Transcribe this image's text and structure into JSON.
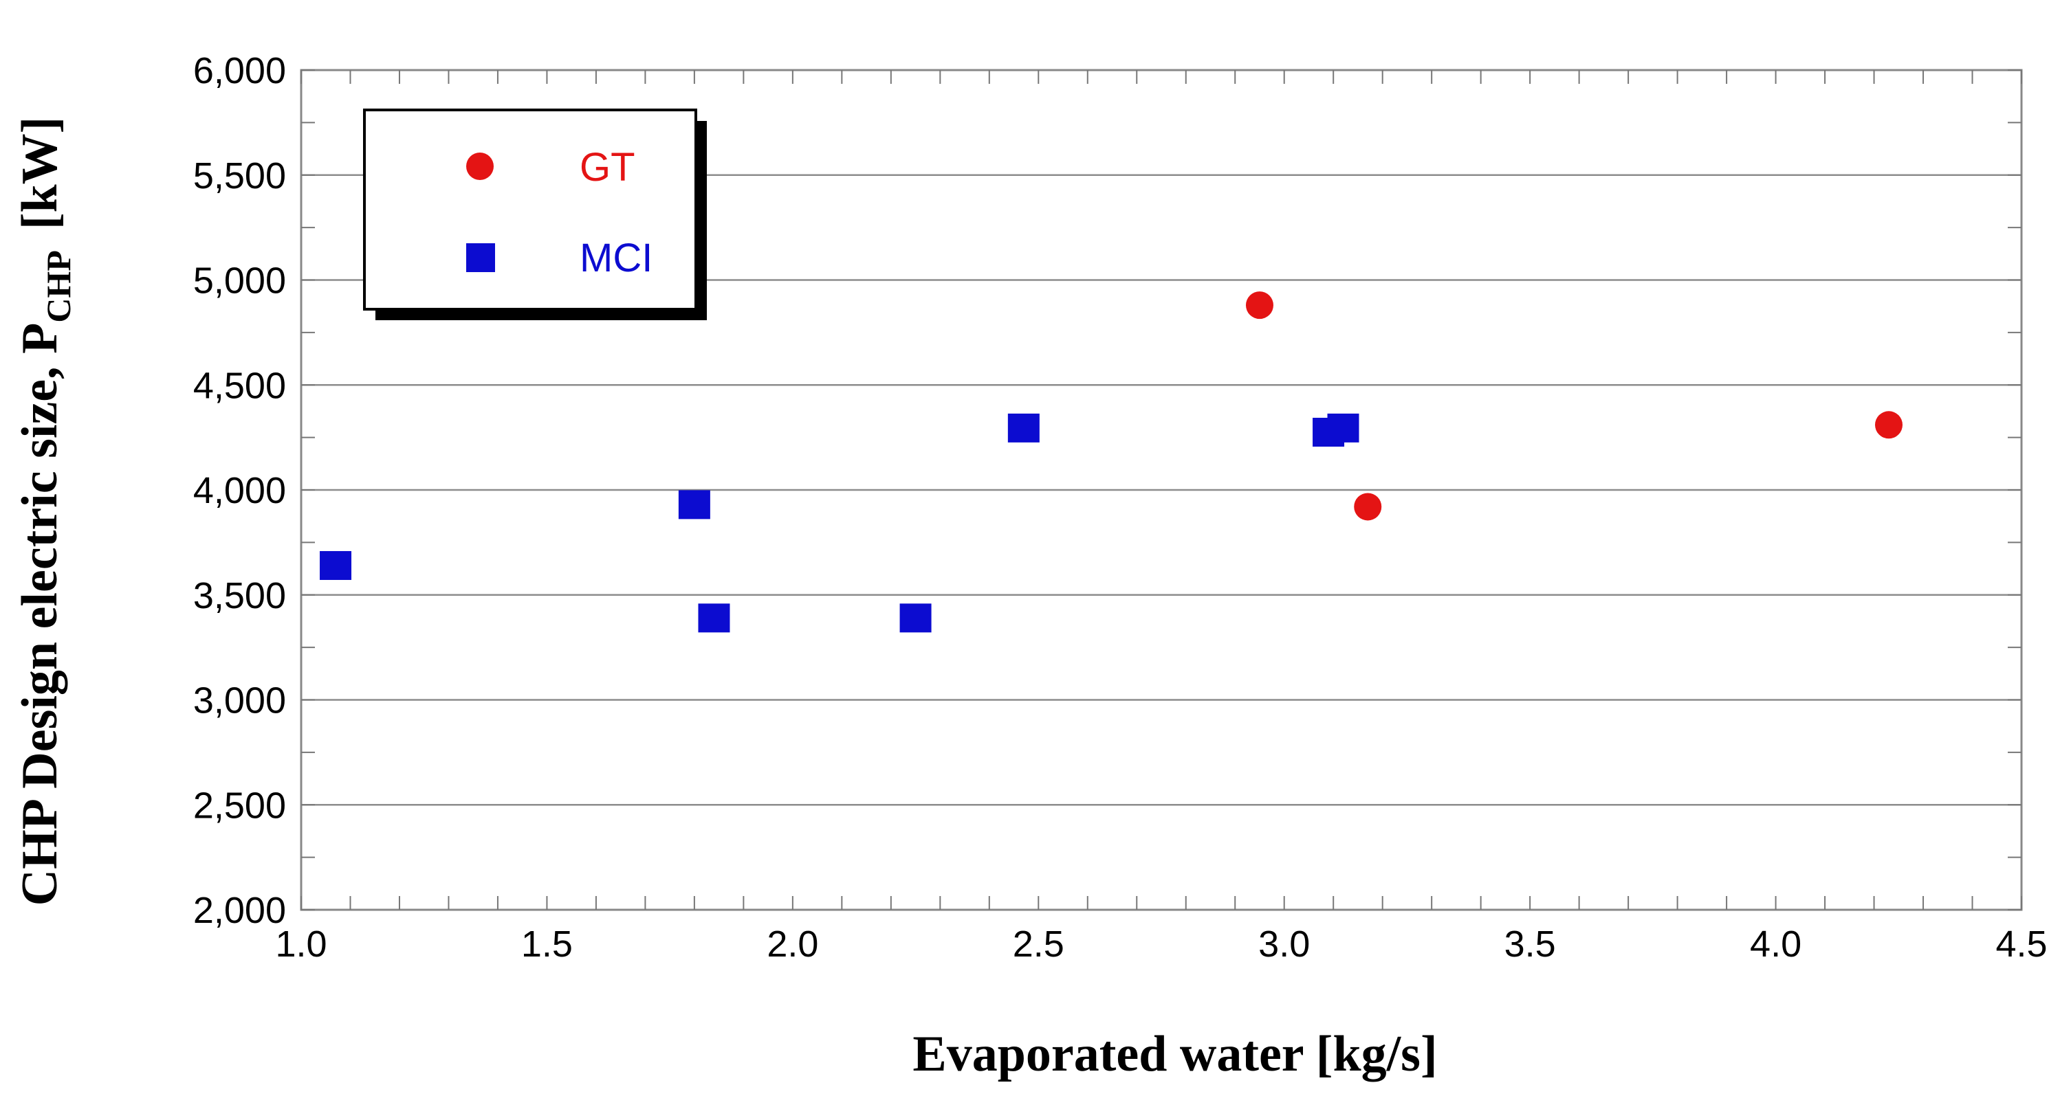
{
  "chart_data": {
    "type": "scatter",
    "title": "",
    "xlabel": "Evaporated water [kg/s]",
    "ylabel": {
      "main": "CHP Design electric size, P",
      "subscript": "CHP",
      "unit": "[kW]"
    },
    "xlim": [
      1.0,
      4.5
    ],
    "ylim": [
      2000,
      6000
    ],
    "x_major_ticks": [
      1.0,
      1.5,
      2.0,
      2.5,
      3.0,
      3.5,
      4.0,
      4.5
    ],
    "x_tick_labels": [
      "1.0",
      "1.5",
      "2.0",
      "2.5",
      "3.0",
      "3.5",
      "4.0",
      "4.5"
    ],
    "x_minor_step": 0.1,
    "y_major_ticks": [
      2000,
      2500,
      3000,
      3500,
      4000,
      4500,
      5000,
      5500,
      6000
    ],
    "y_tick_labels": [
      "2,000",
      "2,500",
      "3,000",
      "3,500",
      "4,000",
      "4,500",
      "5,000",
      "5,500",
      "6,000"
    ],
    "y_minor_step": 250,
    "grid": "horizontal major gridlines",
    "legend_position": "top-left",
    "series": [
      {
        "name": "GT",
        "marker": "circle",
        "color": "#e41414",
        "points": [
          [
            2.95,
            4880
          ],
          [
            3.17,
            3920
          ],
          [
            4.23,
            4310
          ]
        ]
      },
      {
        "name": "MCI",
        "marker": "square",
        "color": "#0c0cd0",
        "points": [
          [
            1.07,
            3640
          ],
          [
            1.8,
            3930
          ],
          [
            1.84,
            3390
          ],
          [
            2.25,
            3390
          ],
          [
            2.47,
            4295
          ],
          [
            3.09,
            4275
          ],
          [
            3.12,
            4295
          ]
        ]
      }
    ]
  }
}
